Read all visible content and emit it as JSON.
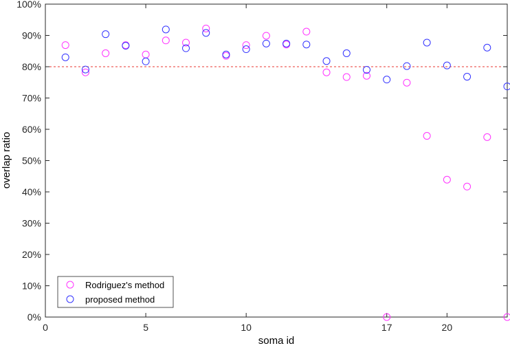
{
  "chart_data": {
    "type": "scatter",
    "title": "",
    "xlabel": "soma id",
    "ylabel": "overlap ratio",
    "xlim": [
      0,
      23
    ],
    "ylim": [
      0,
      100
    ],
    "x_ticks": [
      0,
      5,
      10,
      17,
      20
    ],
    "x_tick_labels": [
      "0",
      "5",
      "10",
      "17",
      "20"
    ],
    "y_ticks": [
      0,
      10,
      20,
      30,
      40,
      50,
      60,
      70,
      80,
      90,
      100
    ],
    "y_tick_labels": [
      "0%",
      "10%",
      "20%",
      "30%",
      "40%",
      "50%",
      "60%",
      "70%",
      "80%",
      "90%",
      "100%"
    ],
    "grid": false,
    "legend_position": "bottom-left",
    "threshold": {
      "value": 80,
      "style": "dashed",
      "color": "#e8352f"
    },
    "series": [
      {
        "name": "Rodriguez's method",
        "color": "#ff33ff",
        "x": [
          1,
          2,
          3,
          4,
          5,
          6,
          7,
          8,
          9,
          10,
          11,
          12,
          13,
          14,
          15,
          16,
          17,
          18,
          19,
          20,
          21,
          22,
          23
        ],
        "values": [
          86.9,
          78.2,
          84.3,
          86.9,
          83.9,
          88.4,
          87.7,
          92.2,
          83.5,
          86.9,
          89.9,
          87.1,
          91.2,
          78.2,
          76.7,
          77.1,
          0,
          74.9,
          57.9,
          43.9,
          41.7,
          57.5,
          0
        ]
      },
      {
        "name": "proposed method",
        "color": "#3333ff",
        "x": [
          1,
          2,
          3,
          4,
          5,
          6,
          7,
          8,
          9,
          10,
          11,
          12,
          13,
          14,
          15,
          16,
          17,
          18,
          19,
          20,
          21,
          22,
          23
        ],
        "values": [
          83.0,
          79.1,
          90.4,
          86.7,
          81.7,
          91.9,
          85.9,
          90.8,
          83.9,
          85.6,
          87.4,
          87.4,
          87.1,
          81.8,
          84.3,
          79.0,
          75.9,
          80.2,
          87.7,
          80.4,
          76.8,
          86.1,
          73.7
        ]
      }
    ]
  }
}
